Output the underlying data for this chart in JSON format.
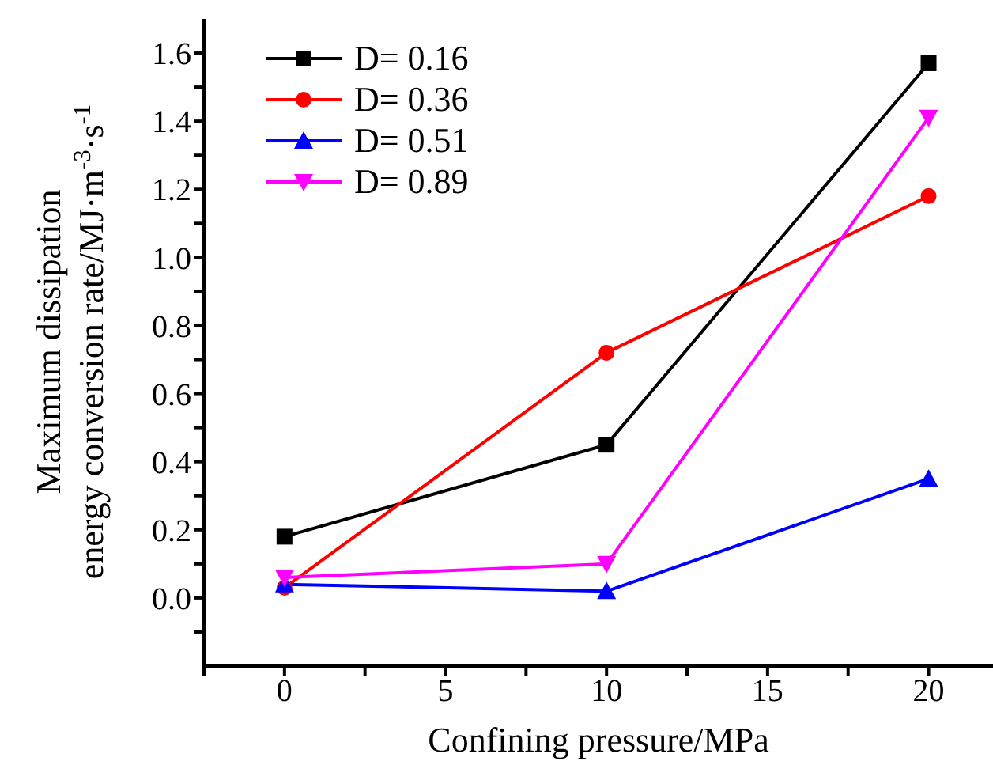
{
  "chart_data": {
    "type": "line",
    "xlabel": "Confining pressure/MPa",
    "ylabel": "Maximum dissipation\nenergy conversion rate/MJ·m$^{-3}$·s$^{-1}$",
    "x": [
      0,
      10,
      20
    ],
    "series": [
      {
        "name": "D= 0.16",
        "color": "#000000",
        "marker": "square",
        "values": [
          0.18,
          0.45,
          1.57
        ]
      },
      {
        "name": "D= 0.36",
        "color": "#ff0000",
        "marker": "circle",
        "values": [
          0.03,
          0.72,
          1.18
        ]
      },
      {
        "name": "D= 0.51",
        "color": "#0000ff",
        "marker": "triangle",
        "values": [
          0.04,
          0.02,
          0.35
        ]
      },
      {
        "name": "D= 0.89",
        "color": "#ff00ff",
        "marker": "triangle-down",
        "values": [
          0.06,
          0.1,
          1.41
        ]
      }
    ],
    "xlim": [
      -2.5,
      22
    ],
    "xticks": [
      {
        "value": -2.5,
        "label": null
      },
      0,
      {
        "value": 2.5,
        "label": null
      },
      5,
      {
        "value": 7.5,
        "label": null
      },
      10,
      {
        "value": 12.5,
        "label": null
      },
      15,
      {
        "value": 17.5,
        "label": null
      },
      20
    ],
    "ylim": [
      -0.2,
      1.7
    ],
    "yticks": [
      {
        "value": -0.1,
        "label": null
      },
      {
        "value": 0,
        "label": "0.0"
      },
      {
        "value": 0.1,
        "label": null
      },
      {
        "value": 0.2,
        "label": "0.2"
      },
      {
        "value": 0.3,
        "label": null
      },
      {
        "value": 0.4,
        "label": "0.4"
      },
      {
        "value": 0.5,
        "label": null
      },
      {
        "value": 0.6,
        "label": "0.6"
      },
      {
        "value": 0.7,
        "label": null
      },
      {
        "value": 0.8,
        "label": "0.8"
      },
      {
        "value": 0.9,
        "label": null
      },
      {
        "value": 1.0,
        "label": "1.0"
      },
      {
        "value": 1.1,
        "label": null
      },
      {
        "value": 1.2,
        "label": "1.2"
      },
      {
        "value": 1.3,
        "label": null
      },
      {
        "value": 1.4,
        "label": "1.4"
      },
      {
        "value": 1.5,
        "label": null
      },
      {
        "value": 1.6,
        "label": "1.6"
      }
    ],
    "grid": false,
    "legend": "top left",
    "line_style": "solid"
  }
}
